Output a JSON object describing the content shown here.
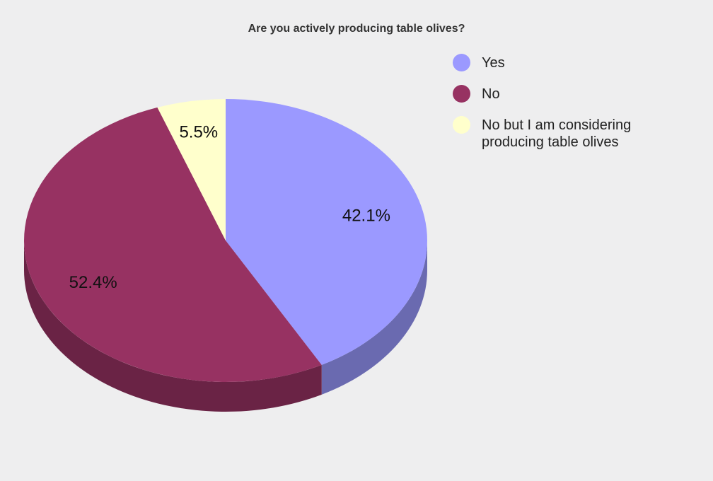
{
  "chart_data": {
    "type": "pie",
    "title": "Are you actively producing table olives?",
    "categories": [
      "Yes",
      "No",
      "No but I am considering producing table olives"
    ],
    "values": [
      42.1,
      52.4,
      5.5
    ],
    "data_labels": [
      "42.1%",
      "52.4%",
      "5.5%"
    ],
    "colors": [
      "#9b99ff",
      "#973262",
      "#ffffcc"
    ],
    "side_colors": [
      "#6a6ab0",
      "#6a2345",
      "#c8c8a0"
    ],
    "legend_position": "right",
    "style": "3d"
  }
}
